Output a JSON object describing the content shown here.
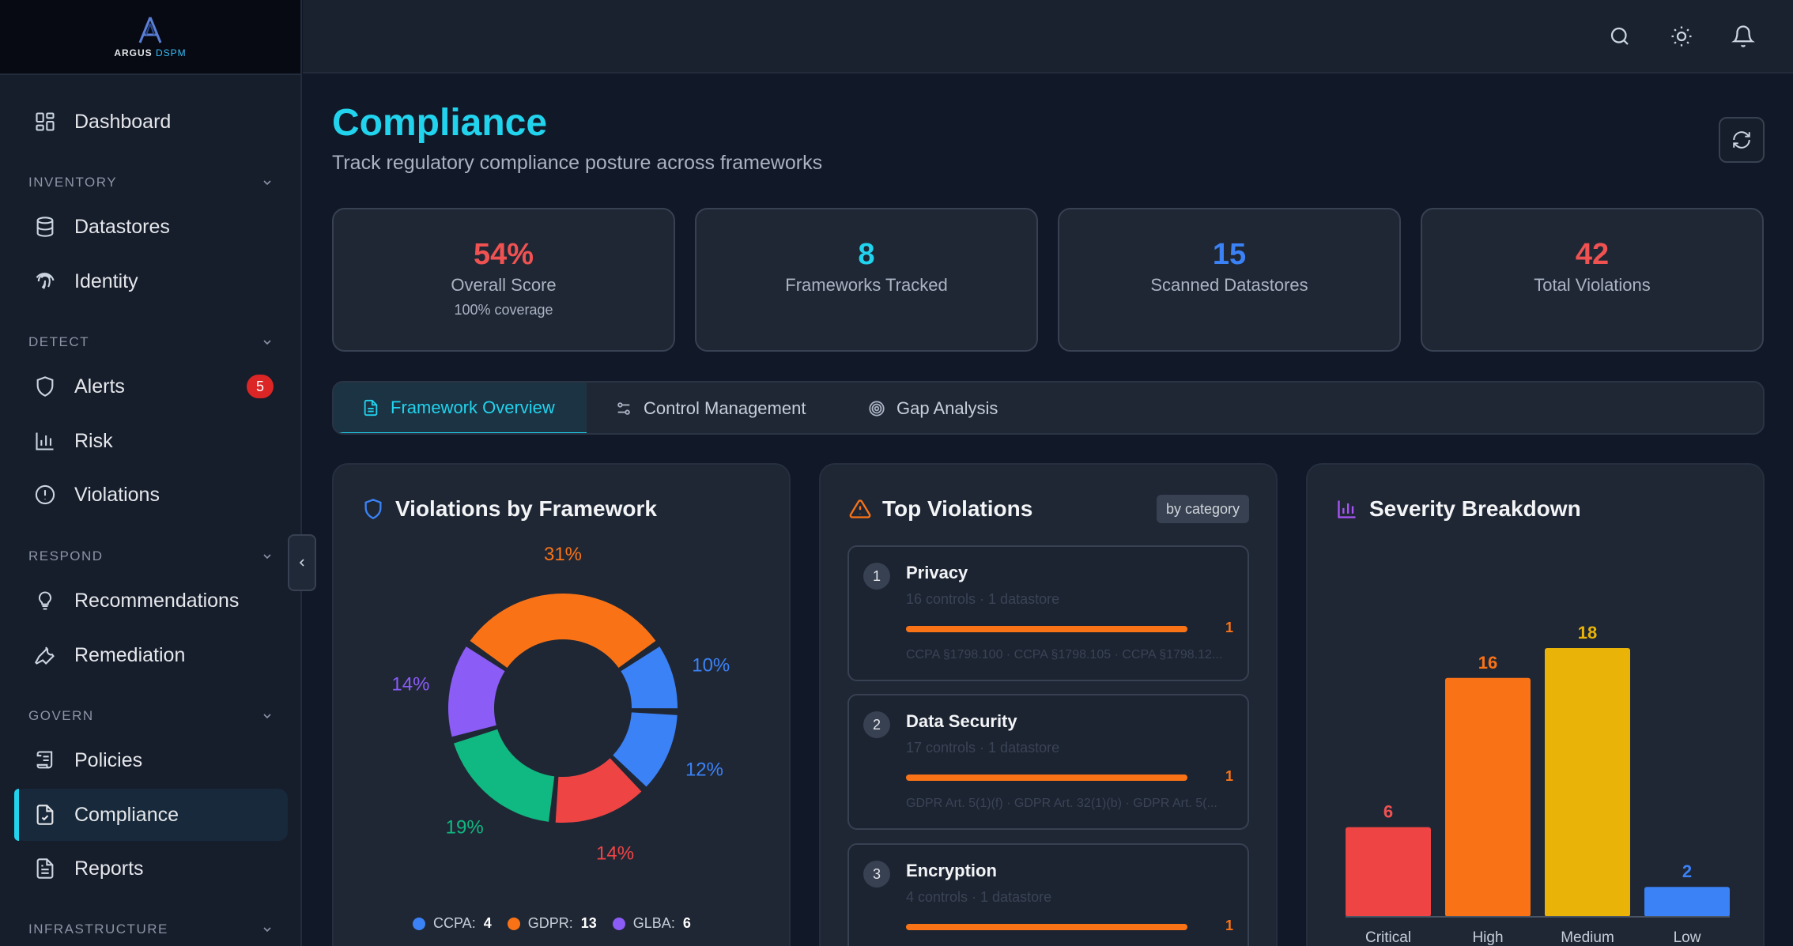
{
  "brand": {
    "name": "ARGUS",
    "suffix": "DSPM"
  },
  "sidebar": {
    "items": [
      {
        "label": "Dashboard",
        "icon": "dashboard-icon"
      },
      {
        "label": "Datastores",
        "icon": "database-icon"
      },
      {
        "label": "Identity",
        "icon": "fingerprint-icon"
      },
      {
        "label": "Alerts",
        "icon": "shield-icon",
        "badge": "5"
      },
      {
        "label": "Risk",
        "icon": "bar-chart-icon"
      },
      {
        "label": "Violations",
        "icon": "alert-circle-icon"
      },
      {
        "label": "Recommendations",
        "icon": "lightbulb-icon"
      },
      {
        "label": "Remediation",
        "icon": "wrench-icon"
      },
      {
        "label": "Policies",
        "icon": "scroll-icon"
      },
      {
        "label": "Compliance",
        "icon": "file-check-icon",
        "active": true
      },
      {
        "label": "Reports",
        "icon": "file-text-icon"
      }
    ],
    "sections": [
      "INVENTORY",
      "DETECT",
      "RESPOND",
      "GOVERN",
      "INFRASTRUCTURE"
    ]
  },
  "page": {
    "title": "Compliance",
    "subtitle": "Track regulatory compliance posture across frameworks"
  },
  "stats": [
    {
      "value": "54%",
      "label": "Overall Score",
      "sub": "100% coverage",
      "color": "#f05252"
    },
    {
      "value": "8",
      "label": "Frameworks Tracked",
      "color": "#22d3ee"
    },
    {
      "value": "15",
      "label": "Scanned Datastores",
      "color": "#3b82f6"
    },
    {
      "value": "42",
      "label": "Total Violations",
      "color": "#f05252"
    }
  ],
  "tabs": [
    "Framework Overview",
    "Control Management",
    "Gap Analysis"
  ],
  "violations_by_framework": {
    "title": "Violations by Framework",
    "legend": [
      {
        "name": "CCPA",
        "value": "4",
        "color": "#3b82f6"
      },
      {
        "name": "GDPR",
        "value": "13",
        "color": "#f97316"
      },
      {
        "name": "GLBA",
        "value": "6",
        "color": "#8b5cf6"
      }
    ]
  },
  "top_violations": {
    "title": "Top Violations",
    "pill": "by category",
    "items": [
      {
        "num": "1",
        "name": "Privacy",
        "meta": "16 controls  ·  1 datastore",
        "count": "1",
        "refs": "CCPA §1798.100 · CCPA §1798.105 · CCPA §1798.12..."
      },
      {
        "num": "2",
        "name": "Data Security",
        "meta": "17 controls  ·  1 datastore",
        "count": "1",
        "refs": "GDPR Art. 5(1)(f) · GDPR Art. 32(1)(b) · GDPR Art. 5(..."
      },
      {
        "num": "3",
        "name": "Encryption",
        "meta": "4 controls  ·  1 datastore",
        "count": "1",
        "refs": ""
      }
    ]
  },
  "severity": {
    "title": "Severity Breakdown"
  },
  "chart_data": [
    {
      "type": "pie",
      "title": "Violations by Framework",
      "slices": [
        {
          "label": "31%",
          "value": 31,
          "color": "#f97316"
        },
        {
          "label": "10%",
          "value": 10,
          "color": "#3b82f6"
        },
        {
          "label": "12%",
          "value": 12,
          "color": "#3b82f6"
        },
        {
          "label": "14%",
          "value": 14,
          "color": "#ef4444"
        },
        {
          "label": "19%",
          "value": 19,
          "color": "#10b981"
        },
        {
          "label": "14%",
          "value": 14,
          "color": "#8b5cf6"
        }
      ]
    },
    {
      "type": "bar",
      "title": "Severity Breakdown",
      "categories": [
        "Critical",
        "High",
        "Medium",
        "Low"
      ],
      "values": [
        6,
        16,
        18,
        2
      ],
      "colors": [
        "#ef4444",
        "#f97316",
        "#eab308",
        "#3b82f6"
      ],
      "label_colors": [
        "#f05252",
        "#f97316",
        "#eab308",
        "#3b82f6"
      ]
    }
  ]
}
